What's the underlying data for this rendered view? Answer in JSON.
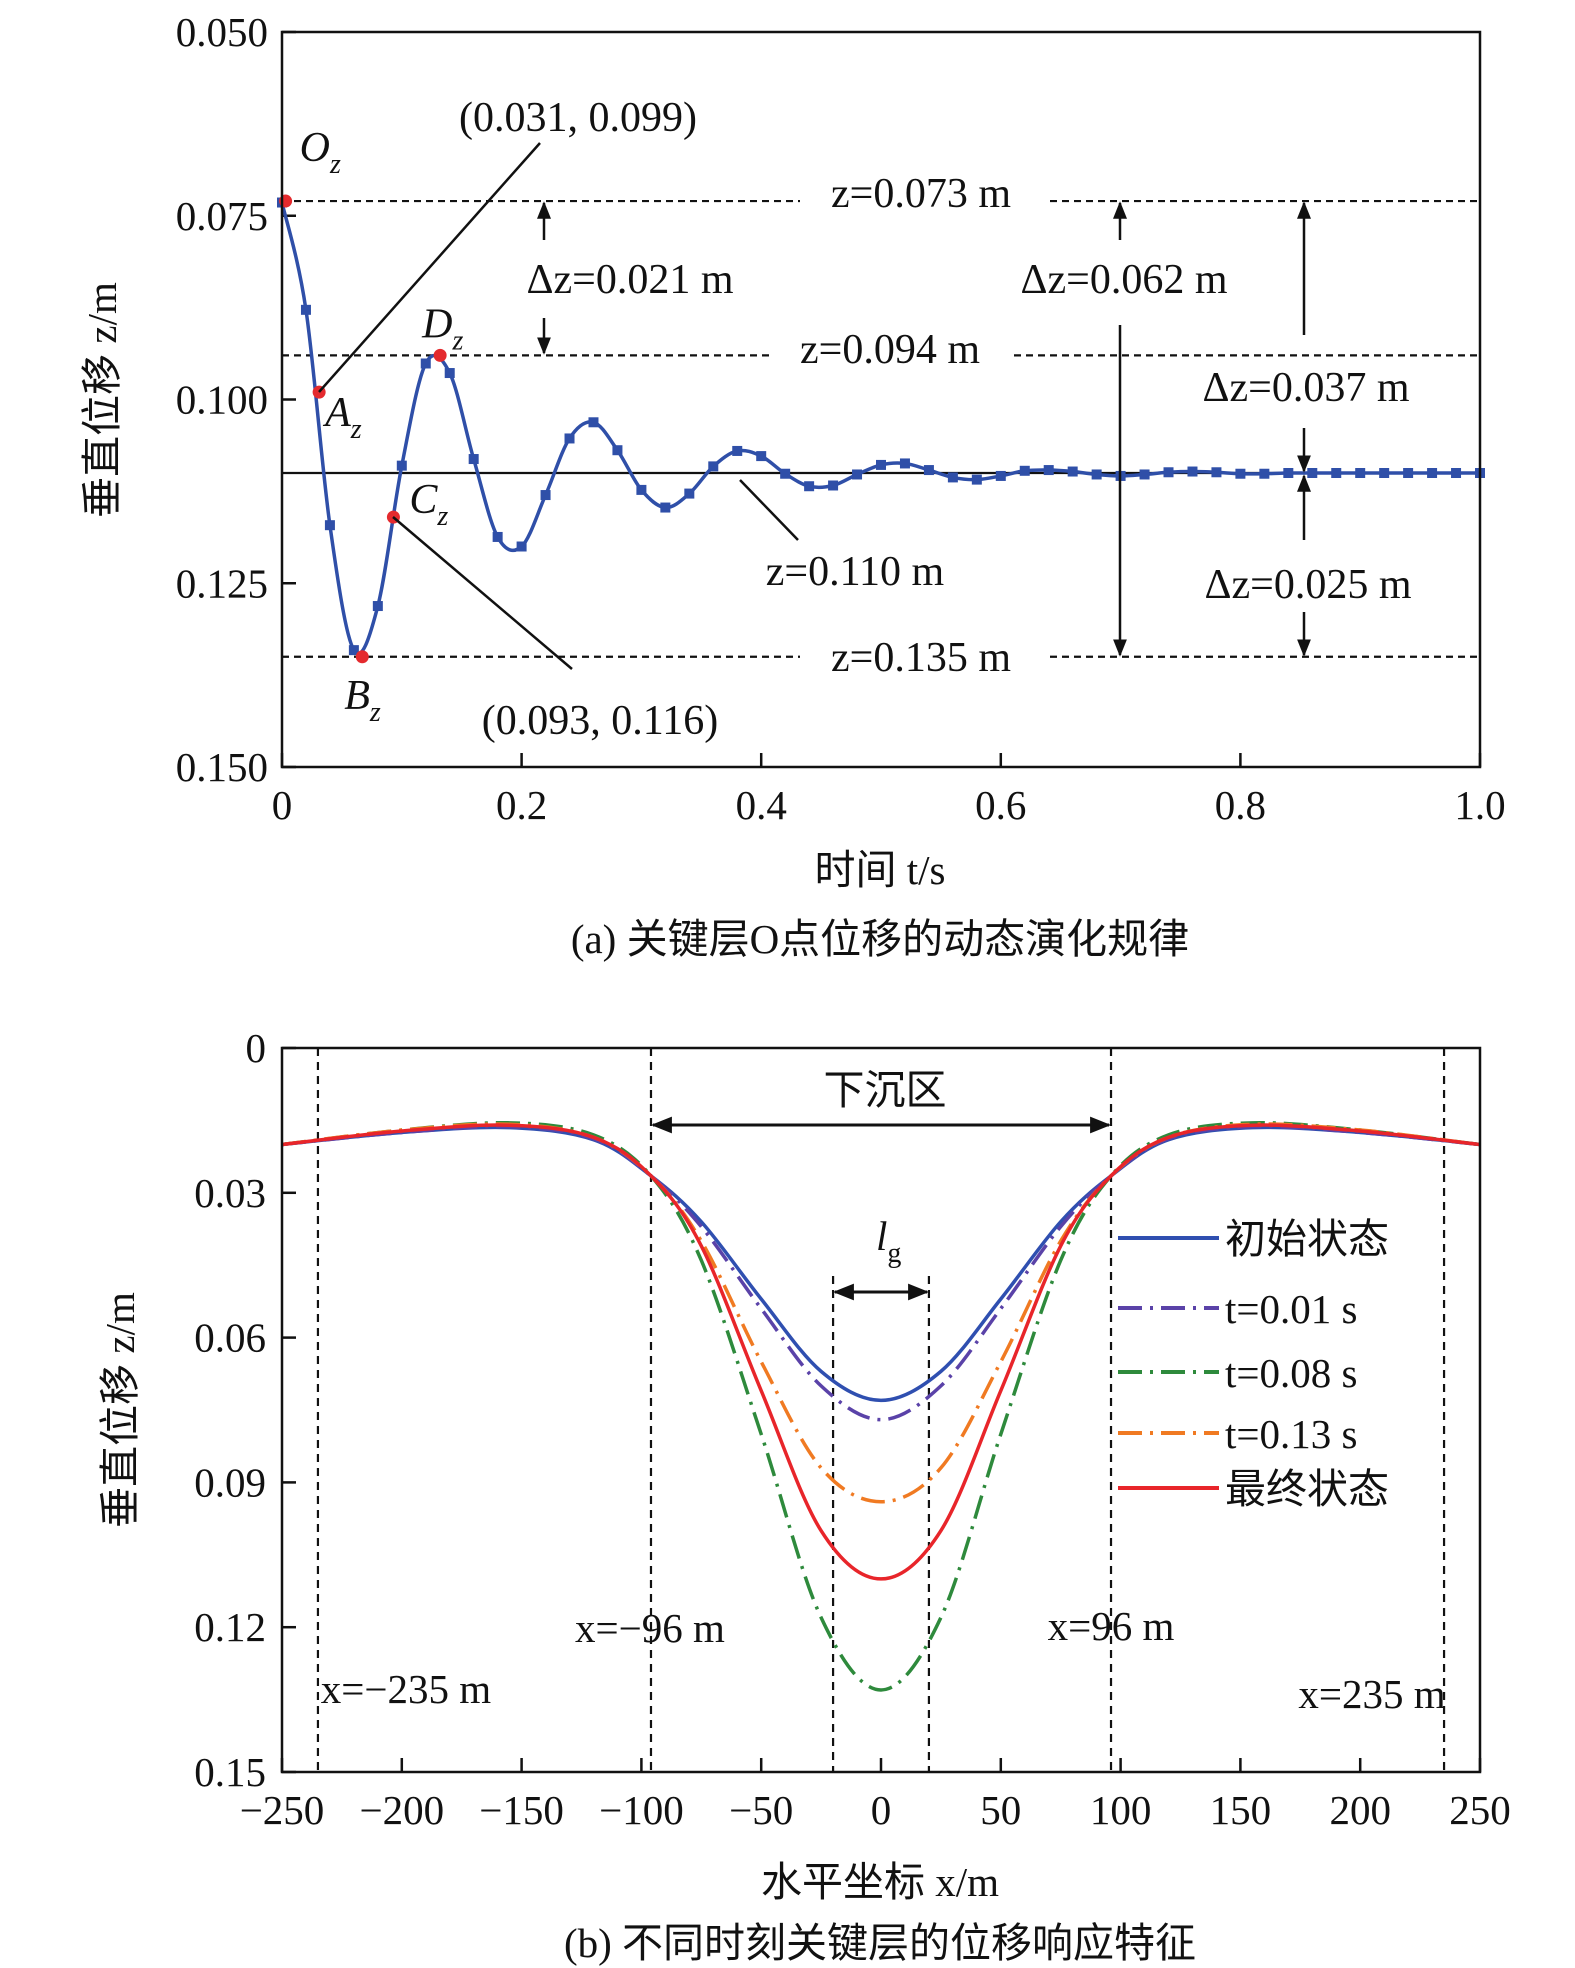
{
  "chart_data": [
    {
      "type": "line",
      "title": "(a) 关键层O点位移的动态演化规律",
      "xlabel": "时间 t/s",
      "ylabel": "垂直位移 z/m",
      "xlim": [
        0,
        1.0
      ],
      "ylim": [
        0.05,
        0.15
      ],
      "y_inverted": true,
      "x_ticks": [
        "0",
        "0.2",
        "0.4",
        "0.6",
        "0.8",
        "1.0"
      ],
      "y_ticks": [
        "0.050",
        "0.075",
        "0.100",
        "0.125",
        "0.150"
      ],
      "series": [
        {
          "name": "关键层O点位移",
          "color": "#2f4fa8",
          "x": [
            0,
            0.02,
            0.04,
            0.06,
            0.08,
            0.1,
            0.12,
            0.14,
            0.16,
            0.18,
            0.2,
            0.22,
            0.24,
            0.26,
            0.28,
            0.3,
            0.32,
            0.34,
            0.36,
            0.38,
            0.4,
            0.42,
            0.44,
            0.46,
            0.48,
            0.5,
            0.52,
            0.54,
            0.56,
            0.58,
            0.6,
            0.62,
            0.64,
            0.66,
            0.68,
            0.7,
            0.72,
            0.74,
            0.76,
            0.78,
            0.8,
            0.82,
            0.84,
            0.86,
            0.88,
            0.9,
            0.92,
            0.94,
            0.96,
            0.98,
            1.0
          ],
          "y": [
            0.0732,
            0.0878,
            0.1171,
            0.1341,
            0.1281,
            0.109,
            0.0951,
            0.0964,
            0.1081,
            0.1187,
            0.12,
            0.113,
            0.1053,
            0.1031,
            0.1069,
            0.1123,
            0.1147,
            0.1128,
            0.1091,
            0.107,
            0.1077,
            0.1101,
            0.1118,
            0.1117,
            0.1102,
            0.1089,
            0.1087,
            0.1096,
            0.1106,
            0.1109,
            0.1104,
            0.1097,
            0.1096,
            0.1098,
            0.1102,
            0.1104,
            0.1102,
            0.1099,
            0.1098,
            0.1099,
            0.1101,
            0.1101,
            0.11,
            0.11,
            0.11,
            0.11,
            0.11,
            0.11,
            0.11,
            0.11,
            0.11
          ]
        }
      ],
      "key_points": [
        {
          "label": "O",
          "sub": "z",
          "t": 0.003,
          "z": 0.073
        },
        {
          "label": "A",
          "sub": "z",
          "t": 0.031,
          "z": 0.099
        },
        {
          "label": "B",
          "sub": "z",
          "t": 0.067,
          "z": 0.135
        },
        {
          "label": "C",
          "sub": "z",
          "t": 0.093,
          "z": 0.116
        },
        {
          "label": "D",
          "sub": "z",
          "t": 0.132,
          "z": 0.094
        }
      ],
      "reference_lines": [
        {
          "z": 0.073,
          "style": "dashed",
          "label": "z=0.073 m"
        },
        {
          "z": 0.094,
          "style": "dashed",
          "label": "z=0.094 m"
        },
        {
          "z": 0.11,
          "style": "solid",
          "label": "z=0.110 m"
        },
        {
          "z": 0.135,
          "style": "dashed",
          "label": "z=0.135 m"
        }
      ],
      "annotations": {
        "point_a": "(0.031, 0.099)",
        "point_c": "(0.093, 0.116)",
        "dz_021": "Δz=0.021 m",
        "dz_062": "Δz=0.062 m",
        "dz_037": "Δz=0.037 m",
        "dz_025": "Δz=0.025 m"
      },
      "marker_color": "#e42a2e"
    },
    {
      "type": "line",
      "title": "(b) 不同时刻关键层的位移响应特征",
      "xlabel": "水平坐标 x/m",
      "ylabel": "垂直位移 z/m",
      "xlim": [
        -250,
        250
      ],
      "ylim": [
        0,
        0.15
      ],
      "y_inverted": true,
      "x_ticks": [
        "−250",
        "−200",
        "−150",
        "−100",
        "−50",
        "0",
        "50",
        "100",
        "150",
        "200",
        "250"
      ],
      "y_ticks": [
        "0",
        "0.03",
        "0.06",
        "0.09",
        "0.12",
        "0.15"
      ],
      "x": [
        -250,
        -200,
        -155,
        -120,
        -96,
        -75,
        -50,
        -25,
        0,
        25,
        50,
        75,
        96,
        120,
        155,
        200,
        250
      ],
      "series": [
        {
          "name": "初始状态",
          "color": "#2f4fb0",
          "dash": "solid",
          "y": [
            0.02,
            0.0175,
            0.0165,
            0.019,
            0.0265,
            0.036,
            0.052,
            0.067,
            0.073,
            0.067,
            0.052,
            0.036,
            0.0265,
            0.019,
            0.0165,
            0.0175,
            0.02
          ]
        },
        {
          "name": "t=0.01 s",
          "color": "#5a42a8",
          "dash": "dashdot",
          "y": [
            0.02,
            0.0175,
            0.0163,
            0.0188,
            0.0265,
            0.037,
            0.054,
            0.07,
            0.077,
            0.07,
            0.054,
            0.037,
            0.0265,
            0.0188,
            0.0163,
            0.0175,
            0.02
          ]
        },
        {
          "name": "t=0.08 s",
          "color": "#2e8a3c",
          "dash": "dashdot",
          "y": [
            0.02,
            0.017,
            0.0155,
            0.018,
            0.0265,
            0.044,
            0.08,
            0.118,
            0.133,
            0.118,
            0.08,
            0.044,
            0.0265,
            0.018,
            0.0155,
            0.017,
            0.02
          ]
        },
        {
          "name": "t=0.13 s",
          "color": "#f07a22",
          "dash": "dashdot",
          "y": [
            0.02,
            0.017,
            0.0158,
            0.0185,
            0.0265,
            0.04,
            0.065,
            0.087,
            0.094,
            0.087,
            0.065,
            0.04,
            0.0265,
            0.0185,
            0.0158,
            0.017,
            0.02
          ]
        },
        {
          "name": "最终状态",
          "color": "#e8252a",
          "dash": "solid",
          "y": [
            0.02,
            0.0172,
            0.016,
            0.0185,
            0.0265,
            0.041,
            0.071,
            0.1,
            0.11,
            0.1,
            0.071,
            0.041,
            0.0265,
            0.0185,
            0.016,
            0.0172,
            0.02
          ]
        }
      ],
      "vertical_lines": [
        {
          "x": -235,
          "label": "x=−235 m"
        },
        {
          "x": -96,
          "label": "x=−96 m"
        },
        {
          "x": 96,
          "label": "x=96 m"
        },
        {
          "x": 235,
          "label": "x=235 m"
        },
        {
          "x": -20,
          "label": ""
        },
        {
          "x": 20,
          "label": ""
        }
      ],
      "annotations": {
        "subsidence_zone": "下沉区",
        "lg_main": "l",
        "lg_sub": "g"
      },
      "legend_placement": "right"
    }
  ]
}
